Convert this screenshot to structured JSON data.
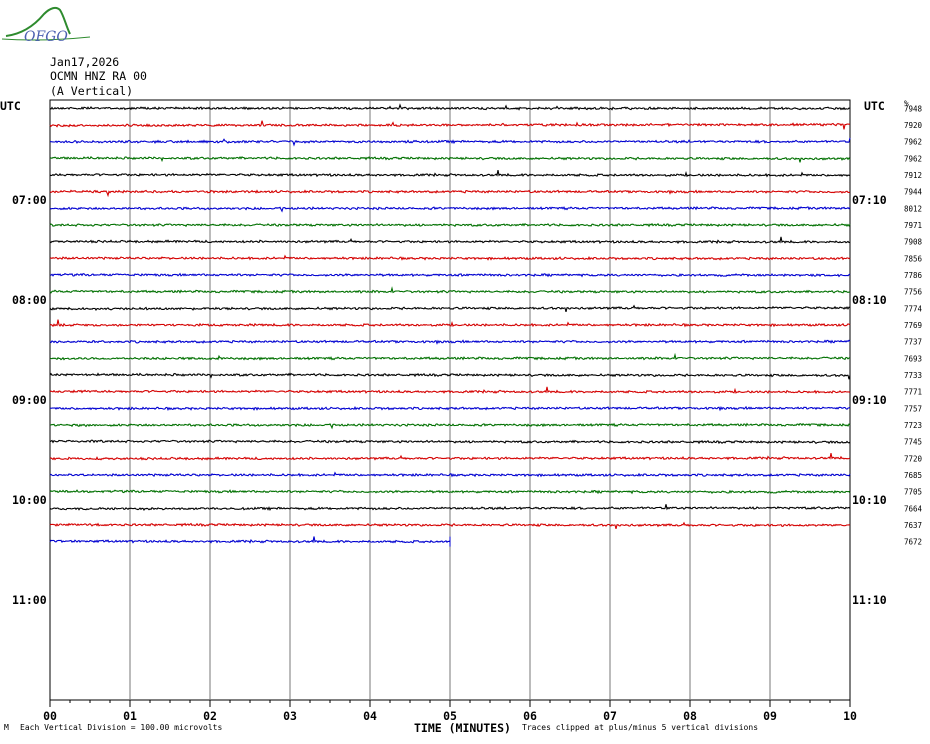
{
  "logo": {
    "text": "OFGO"
  },
  "header": {
    "date": "Jan17,2026",
    "station": "OCMN HNZ RA 00",
    "component": "(A Vertical)"
  },
  "colors": {
    "trace_cycle": [
      "#000000",
      "#d40000",
      "#0000d0",
      "#007000"
    ]
  },
  "chart_data": {
    "type": "line",
    "title": "",
    "left_label": "UTC",
    "right_label": "UTC",
    "scale_label": "%",
    "xlabel": "TIME (MINUTES)",
    "x_ticks": [
      "00",
      "01",
      "02",
      "03",
      "04",
      "05",
      "06",
      "07",
      "08",
      "09",
      "10"
    ],
    "x_range": [
      0,
      10
    ],
    "left_hour_labels": [
      "07:00",
      "08:00",
      "09:00",
      "10:00",
      "11:00"
    ],
    "right_hour_labels": [
      "07:10",
      "08:10",
      "09:10",
      "10:10",
      "11:10"
    ],
    "lines_per_hour": 6,
    "first_line_offset_lines": 6,
    "total_lines": 36,
    "trace_values": [
      7948,
      7920,
      7962,
      7962,
      7912,
      7944,
      8012,
      7971,
      7908,
      7856,
      7786,
      7756,
      7774,
      7769,
      7737,
      7693,
      7733,
      7771,
      7757,
      7723,
      7745,
      7720,
      7685,
      7705,
      7664,
      7637,
      7672
    ],
    "last_trace_end_minute": 5,
    "footer_left": "Each Vertical Division =  100.00 microvolts",
    "footer_right": "Traces clipped at plus/minus 5 vertical divisions",
    "footer_mark": "M"
  }
}
